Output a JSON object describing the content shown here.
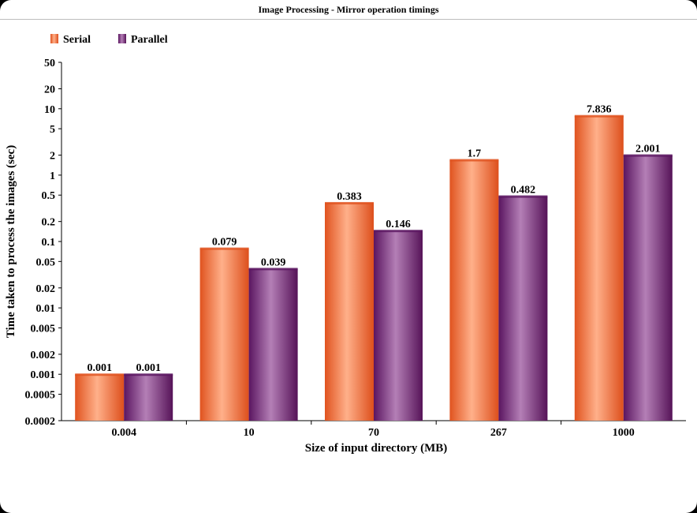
{
  "chart_data": {
    "type": "bar",
    "title": "Image Processing - Mirror operation timings",
    "xlabel": "Size of input directory (MB)",
    "ylabel": "Time taken to process the images (sec)",
    "categories": [
      "0.004",
      "10",
      "70",
      "267",
      "1000"
    ],
    "series": [
      {
        "name": "Serial",
        "values": [
          0.001,
          0.079,
          0.383,
          1.7,
          7.836
        ],
        "labels": [
          "0.001",
          "0.079",
          "0.383",
          "1.7",
          "7.836"
        ],
        "color": "#f26a35"
      },
      {
        "name": "Parallel",
        "values": [
          0.001,
          0.039,
          0.146,
          0.482,
          2.001
        ],
        "labels": [
          "0.001",
          "0.039",
          "0.146",
          "0.482",
          "2.001"
        ],
        "color": "#6b1f6e"
      }
    ],
    "yscale": "log",
    "ylim": [
      0.0002,
      50
    ],
    "yticks": [
      "50",
      "20",
      "10",
      "5",
      "2",
      "1",
      "0.5",
      "0.2",
      "0.1",
      "0.05",
      "0.02",
      "0.01",
      "0.005",
      "0.002",
      "0.001",
      "0.0005",
      "0.0002"
    ],
    "legend_position": "top-left",
    "grid": false
  }
}
